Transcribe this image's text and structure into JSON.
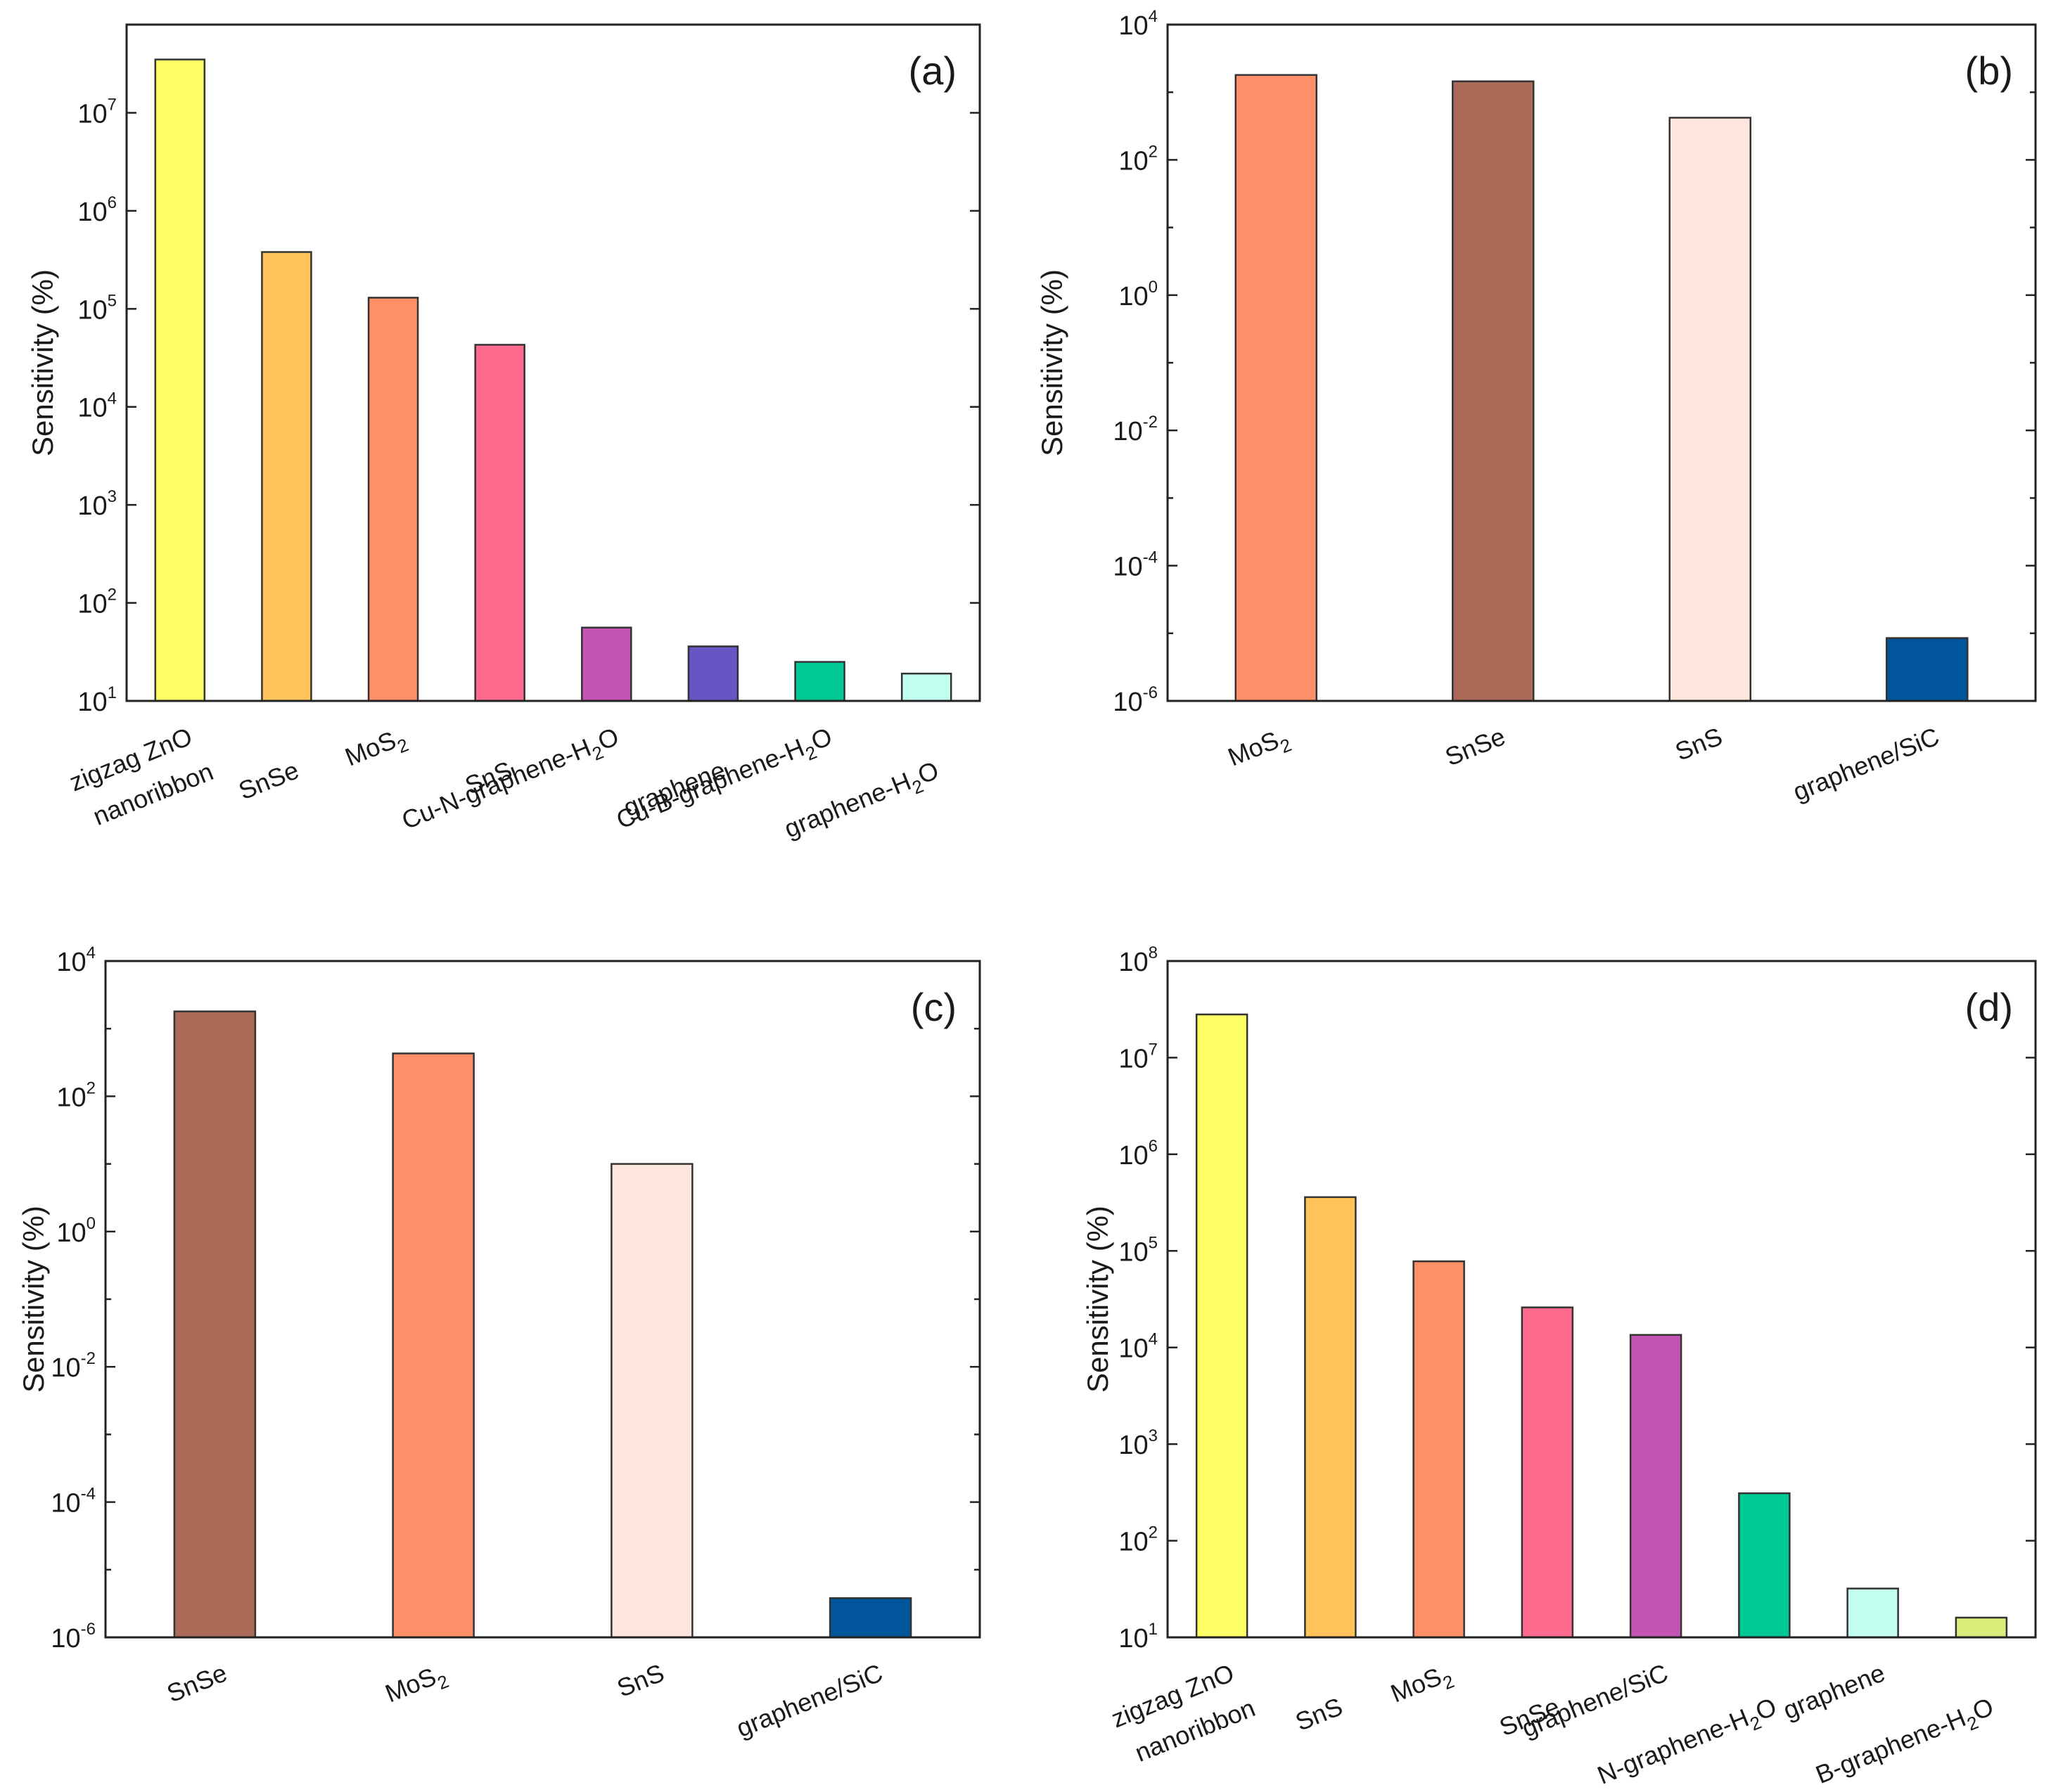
{
  "chart_data": [
    {
      "type": "bar",
      "panel_label": "(a)",
      "ylabel": "Sensitivity (%)",
      "yscale": "log",
      "ylim_exp": [
        1,
        7.9
      ],
      "yticks": [
        {
          "base": "10",
          "exp": "1"
        },
        {
          "base": "10",
          "exp": "2"
        },
        {
          "base": "10",
          "exp": "3"
        },
        {
          "base": "10",
          "exp": "4"
        },
        {
          "base": "10",
          "exp": "5"
        },
        {
          "base": "10",
          "exp": "6"
        },
        {
          "base": "10",
          "exp": "7"
        }
      ],
      "categories": [
        {
          "label": [
            "zigzag ZnO",
            "nanoribbon"
          ],
          "value": 35000000,
          "color": "#ffff66"
        },
        {
          "label": [
            "SnSe"
          ],
          "value": 380000,
          "color": "#ffc35a"
        },
        {
          "label": [
            "MoS",
            "2",
            ""
          ],
          "value": 130000,
          "color": "#ff8f66"
        },
        {
          "label": [
            "SnS"
          ],
          "value": 43000,
          "color": "#ff6b8f"
        },
        {
          "label": [
            "Cu-N-graphene-H",
            "2",
            "O"
          ],
          "value": 56,
          "color": "#c454b4"
        },
        {
          "label": [
            "graphene"
          ],
          "value": 36,
          "color": "#6655c3"
        },
        {
          "label": [
            "Cu-B-graphene-H",
            "2",
            "O"
          ],
          "value": 25,
          "color": "#00c896"
        },
        {
          "label": [
            "graphene-H",
            "2",
            "O"
          ],
          "value": 19,
          "color": "#c3fff0"
        }
      ]
    },
    {
      "type": "bar",
      "panel_label": "(b)",
      "ylabel": "Sensitivity (%)",
      "yscale": "log",
      "ylim_exp": [
        -6,
        4
      ],
      "yticks": [
        {
          "base": "10",
          "exp": "-6"
        },
        {
          "base": "10",
          "exp": "-4"
        },
        {
          "base": "10",
          "exp": "-2"
        },
        {
          "base": "10",
          "exp": "0"
        },
        {
          "base": "10",
          "exp": "2"
        },
        {
          "base": "10",
          "exp": "4"
        }
      ],
      "categories": [
        {
          "label": [
            "MoS",
            "2",
            ""
          ],
          "value": 1800,
          "color": "#ff8f69"
        },
        {
          "label": [
            "SnSe"
          ],
          "value": 1450,
          "color": "#ab6a57"
        },
        {
          "label": [
            "SnS"
          ],
          "value": 420,
          "color": "#ffe6dc"
        },
        {
          "label": [
            "graphene/SiC"
          ],
          "value": 8.5e-06,
          "color": "#00559b"
        }
      ]
    },
    {
      "type": "bar",
      "panel_label": "(c)",
      "ylabel": "Sensitivity (%)",
      "yscale": "log",
      "ylim_exp": [
        -6,
        4
      ],
      "yticks": [
        {
          "base": "10",
          "exp": "-6"
        },
        {
          "base": "10",
          "exp": "-4"
        },
        {
          "base": "10",
          "exp": "-2"
        },
        {
          "base": "10",
          "exp": "0"
        },
        {
          "base": "10",
          "exp": "2"
        },
        {
          "base": "10",
          "exp": "4"
        }
      ],
      "categories": [
        {
          "label": [
            "SnSe"
          ],
          "value": 1800,
          "color": "#ab6a57"
        },
        {
          "label": [
            "MoS",
            "2",
            ""
          ],
          "value": 430,
          "color": "#ff8f69"
        },
        {
          "label": [
            "SnS"
          ],
          "value": 10,
          "color": "#ffe6dc"
        },
        {
          "label": [
            "graphene/SiC"
          ],
          "value": 3.8e-06,
          "color": "#00559b"
        }
      ]
    },
    {
      "type": "bar",
      "panel_label": "(d)",
      "ylabel": "Sensitivity (%)",
      "yscale": "log",
      "ylim_exp": [
        1,
        8
      ],
      "yticks": [
        {
          "base": "10",
          "exp": "1"
        },
        {
          "base": "10",
          "exp": "2"
        },
        {
          "base": "10",
          "exp": "3"
        },
        {
          "base": "10",
          "exp": "4"
        },
        {
          "base": "10",
          "exp": "5"
        },
        {
          "base": "10",
          "exp": "6"
        },
        {
          "base": "10",
          "exp": "7"
        },
        {
          "base": "10",
          "exp": "8"
        }
      ],
      "categories": [
        {
          "label": [
            "zigzag ZnO",
            "nanoribbon"
          ],
          "value": 28000000,
          "color": "#ffff66"
        },
        {
          "label": [
            "SnS"
          ],
          "value": 360000,
          "color": "#ffc35a"
        },
        {
          "label": [
            "MoS",
            "2",
            ""
          ],
          "value": 78000,
          "color": "#ff8f66"
        },
        {
          "label": [
            "SnSe"
          ],
          "value": 26000,
          "color": "#ff6b8f"
        },
        {
          "label": [
            "graphene/SiC"
          ],
          "value": 13500,
          "color": "#c454b4"
        },
        {
          "label": [
            "N-graphene-H",
            "2",
            "O"
          ],
          "value": 310,
          "color": "#00c896"
        },
        {
          "label": [
            "graphene"
          ],
          "value": 32,
          "color": "#c3fff0"
        },
        {
          "label": [
            "B-graphene-H",
            "2",
            "O"
          ],
          "value": 16,
          "color": "#d9ee7a"
        }
      ]
    }
  ]
}
